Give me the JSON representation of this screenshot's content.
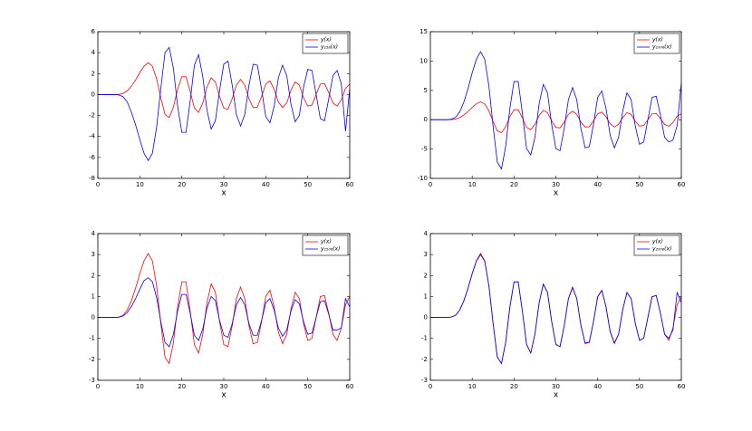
{
  "chart_data": [
    {
      "type": "line",
      "xlabel": "x",
      "x": [
        0,
        1,
        2,
        3,
        4,
        5,
        6,
        7,
        8,
        9,
        10,
        11,
        12,
        13,
        14,
        15,
        16,
        17,
        18,
        19,
        20,
        21,
        22,
        23,
        24,
        25,
        26,
        27,
        28,
        29,
        30,
        31,
        32,
        33,
        34,
        35,
        36,
        37,
        38,
        39,
        40,
        41,
        42,
        43,
        44,
        45,
        46,
        47,
        48,
        49,
        50,
        51,
        52,
        53,
        54,
        55,
        56,
        57,
        58,
        59,
        60
      ],
      "xlim": [
        0,
        60
      ],
      "xticks": [
        0,
        10,
        20,
        30,
        40,
        50,
        60
      ],
      "ylim": [
        -8,
        6
      ],
      "yticks": [
        -8,
        -6,
        -4,
        -2,
        0,
        2,
        4,
        6
      ],
      "legend": "upper right",
      "series": [
        {
          "name": "y(x)",
          "color": "#ff0000",
          "values": [
            0,
            0,
            0,
            0,
            0,
            0.02,
            0.1,
            0.35,
            0.8,
            1.4,
            2.1,
            2.7,
            3.05,
            2.7,
            1.5,
            -0.3,
            -1.9,
            -2.2,
            -1.2,
            0.5,
            1.7,
            1.7,
            0.3,
            -1.3,
            -1.7,
            -0.8,
            0.7,
            1.6,
            1.2,
            -0.2,
            -1.3,
            -1.4,
            -0.4,
            0.9,
            1.45,
            0.9,
            -0.4,
            -1.25,
            -1.2,
            -0.2,
            1.0,
            1.3,
            0.5,
            -0.7,
            -1.25,
            -0.8,
            0.4,
            1.2,
            0.9,
            -0.3,
            -1.1,
            -1.0,
            0.0,
            1.0,
            1.05,
            0.2,
            -0.8,
            -1.1,
            -0.5,
            0.6,
            1.0
          ]
        },
        {
          "name": "y₁₅₈(x)",
          "color": "#0000ff",
          "values": [
            0,
            0,
            0,
            0,
            0,
            -0.04,
            -0.2,
            -0.7,
            -1.7,
            -2.9,
            -4.3,
            -5.6,
            -6.3,
            -5.6,
            -3.1,
            0.6,
            4.0,
            4.5,
            2.5,
            -1.1,
            -3.6,
            -3.6,
            -0.6,
            2.8,
            3.8,
            1.7,
            -1.5,
            -3.3,
            -2.5,
            0.4,
            2.9,
            3.2,
            0.9,
            -1.9,
            -3.0,
            -1.9,
            0.9,
            2.9,
            2.8,
            0.5,
            -2.1,
            -2.7,
            -1.1,
            1.6,
            2.8,
            1.8,
            -0.9,
            -2.6,
            -2.0,
            0.7,
            2.4,
            2.3,
            0,
            -2.3,
            -2.5,
            -0.4,
            1.8,
            2.3,
            1.0,
            -3.5,
            0.6
          ]
        }
      ]
    },
    {
      "type": "line",
      "xlabel": "x",
      "x": [
        0,
        1,
        2,
        3,
        4,
        5,
        6,
        7,
        8,
        9,
        10,
        11,
        12,
        13,
        14,
        15,
        16,
        17,
        18,
        19,
        20,
        21,
        22,
        23,
        24,
        25,
        26,
        27,
        28,
        29,
        30,
        31,
        32,
        33,
        34,
        35,
        36,
        37,
        38,
        39,
        40,
        41,
        42,
        43,
        44,
        45,
        46,
        47,
        48,
        49,
        50,
        51,
        52,
        53,
        54,
        55,
        56,
        57,
        58,
        59,
        60
      ],
      "xlim": [
        0,
        60
      ],
      "xticks": [
        0,
        10,
        20,
        30,
        40,
        50,
        60
      ],
      "ylim": [
        -10,
        15
      ],
      "yticks": [
        -10,
        -5,
        0,
        5,
        10,
        15
      ],
      "legend": "upper right",
      "series": [
        {
          "name": "y(x)",
          "color": "#ff0000",
          "values": [
            0,
            0,
            0,
            0,
            0,
            0.02,
            0.1,
            0.35,
            0.8,
            1.4,
            2.1,
            2.7,
            3.05,
            2.7,
            1.5,
            -0.3,
            -1.9,
            -2.2,
            -1.2,
            0.5,
            1.7,
            1.7,
            0.3,
            -1.3,
            -1.7,
            -0.8,
            0.7,
            1.6,
            1.2,
            -0.2,
            -1.3,
            -1.4,
            -0.4,
            0.9,
            1.45,
            0.9,
            -0.4,
            -1.25,
            -1.2,
            -0.2,
            1.0,
            1.3,
            0.5,
            -0.7,
            -1.25,
            -0.8,
            0.4,
            1.2,
            0.9,
            -0.3,
            -1.1,
            -1.0,
            0.0,
            1.0,
            1.05,
            0.2,
            -0.8,
            -1.1,
            -0.5,
            0.6,
            1.0
          ]
        },
        {
          "name": "y₁₀₀₈(x)",
          "color": "#0000ff",
          "values": [
            0,
            0,
            0,
            0,
            0,
            0.08,
            0.4,
            1.3,
            3.0,
            5.3,
            8.0,
            10.3,
            11.6,
            10.3,
            5.7,
            -1.1,
            -7.2,
            -8.4,
            -4.6,
            1.9,
            6.5,
            6.5,
            1.1,
            -4.9,
            -6.0,
            -3.0,
            2.7,
            6.0,
            4.6,
            -0.8,
            -4.9,
            -5.3,
            -1.5,
            3.4,
            5.5,
            3.4,
            -1.5,
            -4.8,
            -4.6,
            -0.8,
            3.8,
            4.9,
            1.9,
            -2.7,
            -4.8,
            -3.0,
            1.5,
            4.6,
            3.4,
            -1.1,
            -4.2,
            -3.8,
            0,
            3.8,
            4.0,
            0.8,
            -3.0,
            -3.8,
            -3.5,
            -1.0,
            6.3
          ]
        }
      ]
    },
    {
      "type": "line",
      "xlabel": "x",
      "x": [
        0,
        1,
        2,
        3,
        4,
        5,
        6,
        7,
        8,
        9,
        10,
        11,
        12,
        13,
        14,
        15,
        16,
        17,
        18,
        19,
        20,
        21,
        22,
        23,
        24,
        25,
        26,
        27,
        28,
        29,
        30,
        31,
        32,
        33,
        34,
        35,
        36,
        37,
        38,
        39,
        40,
        41,
        42,
        43,
        44,
        45,
        46,
        47,
        48,
        49,
        50,
        51,
        52,
        53,
        54,
        55,
        56,
        57,
        58,
        59,
        60
      ],
      "xlim": [
        0,
        60
      ],
      "xticks": [
        0,
        10,
        20,
        30,
        40,
        50,
        60
      ],
      "ylim": [
        -3,
        4
      ],
      "yticks": [
        -3,
        -2,
        -1,
        0,
        1,
        2,
        3,
        4
      ],
      "legend": "upper right",
      "series": [
        {
          "name": "y(x)",
          "color": "#ff0000",
          "values": [
            0,
            0,
            0,
            0,
            0,
            0.02,
            0.1,
            0.35,
            0.8,
            1.4,
            2.1,
            2.7,
            3.05,
            2.7,
            1.5,
            -0.3,
            -1.9,
            -2.2,
            -1.2,
            0.5,
            1.7,
            1.7,
            0.3,
            -1.3,
            -1.7,
            -0.8,
            0.7,
            1.6,
            1.2,
            -0.2,
            -1.3,
            -1.4,
            -0.4,
            0.9,
            1.45,
            0.9,
            -0.4,
            -1.25,
            -1.2,
            -0.2,
            1.0,
            1.3,
            0.5,
            -0.7,
            -1.25,
            -0.8,
            0.4,
            1.2,
            0.9,
            -0.3,
            -1.1,
            -1.0,
            0.0,
            1.0,
            1.05,
            0.2,
            -0.8,
            -1.1,
            -0.5,
            0.6,
            1.0
          ]
        },
        {
          "name": "y₁₅₀₈(x)",
          "color": "#0000ff",
          "values": [
            0,
            0,
            0,
            0,
            0,
            0.01,
            0.07,
            0.23,
            0.52,
            0.9,
            1.35,
            1.75,
            1.9,
            1.7,
            0.95,
            -0.2,
            -1.2,
            -1.4,
            -0.8,
            0.3,
            1.1,
            1.1,
            0.2,
            -0.85,
            -1.1,
            -0.55,
            0.45,
            1.0,
            0.8,
            -0.15,
            -0.85,
            -0.95,
            -0.3,
            0.6,
            0.95,
            0.6,
            -0.3,
            -0.85,
            -0.85,
            -0.15,
            0.7,
            0.9,
            0.35,
            -0.5,
            -0.9,
            -0.6,
            0.3,
            0.85,
            0.65,
            -0.2,
            -0.8,
            -0.75,
            0,
            0.75,
            0.8,
            0.15,
            -0.6,
            -0.6,
            -0.5,
            0.9,
            0.5
          ]
        }
      ]
    },
    {
      "type": "line",
      "xlabel": "x",
      "x": [
        0,
        1,
        2,
        3,
        4,
        5,
        6,
        7,
        8,
        9,
        10,
        11,
        12,
        13,
        14,
        15,
        16,
        17,
        18,
        19,
        20,
        21,
        22,
        23,
        24,
        25,
        26,
        27,
        28,
        29,
        30,
        31,
        32,
        33,
        34,
        35,
        36,
        37,
        38,
        39,
        40,
        41,
        42,
        43,
        44,
        45,
        46,
        47,
        48,
        49,
        50,
        51,
        52,
        53,
        54,
        55,
        56,
        57,
        58,
        59,
        60
      ],
      "xlim": [
        0,
        60
      ],
      "xticks": [
        0,
        10,
        20,
        30,
        40,
        50,
        60
      ],
      "ylim": [
        -3,
        4
      ],
      "yticks": [
        -3,
        -2,
        -1,
        0,
        1,
        2,
        3,
        4
      ],
      "legend": "upper right",
      "series": [
        {
          "name": "y(x)",
          "color": "#ff0000",
          "values": [
            0,
            0,
            0,
            0,
            0,
            0.02,
            0.1,
            0.35,
            0.8,
            1.4,
            2.1,
            2.7,
            3.05,
            2.7,
            1.5,
            -0.3,
            -1.9,
            -2.2,
            -1.2,
            0.5,
            1.7,
            1.7,
            0.3,
            -1.3,
            -1.7,
            -0.8,
            0.7,
            1.6,
            1.2,
            -0.2,
            -1.3,
            -1.4,
            -0.4,
            0.9,
            1.45,
            0.9,
            -0.4,
            -1.25,
            -1.2,
            -0.2,
            1.0,
            1.3,
            0.5,
            -0.7,
            -1.25,
            -0.8,
            0.4,
            1.2,
            0.9,
            -0.3,
            -1.1,
            -1.0,
            0.0,
            1.0,
            1.05,
            0.2,
            -0.8,
            -1.1,
            -0.5,
            0.6,
            1.0
          ]
        },
        {
          "name": "y₂₀₀₈(x)",
          "color": "#0000ff",
          "values": [
            0,
            0,
            0,
            0,
            0,
            0.02,
            0.1,
            0.34,
            0.78,
            1.38,
            2.08,
            2.68,
            3.0,
            2.68,
            1.5,
            -0.28,
            -1.88,
            -2.2,
            -1.2,
            0.48,
            1.68,
            1.7,
            0.3,
            -1.28,
            -1.7,
            -0.8,
            0.68,
            1.58,
            1.2,
            -0.18,
            -1.28,
            -1.4,
            -0.4,
            0.88,
            1.42,
            0.9,
            -0.38,
            -1.22,
            -1.18,
            -0.2,
            0.98,
            1.28,
            0.5,
            -0.68,
            -1.22,
            -0.8,
            0.38,
            1.18,
            0.9,
            -0.28,
            -1.08,
            -1.0,
            0,
            0.98,
            1.05,
            0.2,
            -0.8,
            -1.0,
            -0.6,
            1.2,
            0.7
          ]
        }
      ]
    }
  ]
}
